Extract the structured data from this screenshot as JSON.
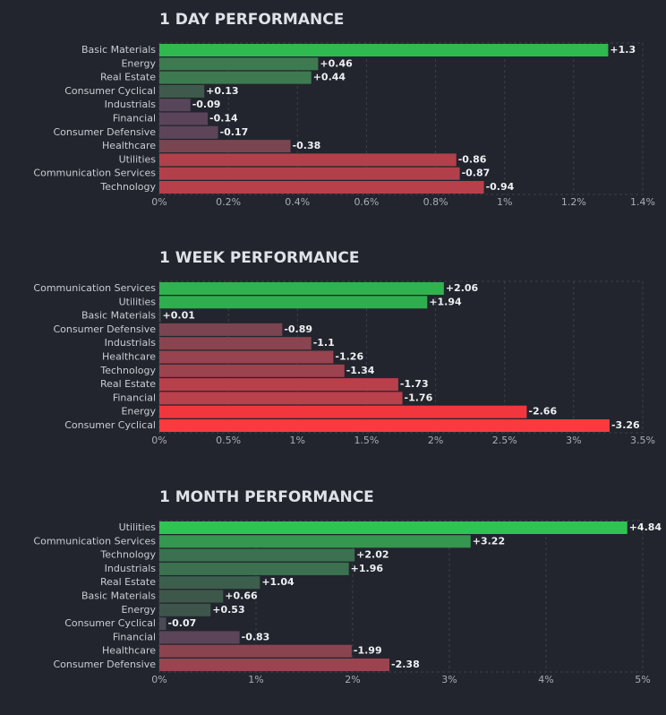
{
  "chart_data": [
    {
      "type": "bar",
      "orientation": "horizontal",
      "title": "1 DAY PERFORMANCE",
      "categories": [
        "Basic Materials",
        "Energy",
        "Real Estate",
        "Consumer Cyclical",
        "Industrials",
        "Financial",
        "Consumer Defensive",
        "Healthcare",
        "Utilities",
        "Communication Services",
        "Technology"
      ],
      "values": [
        1.3,
        0.46,
        0.44,
        0.13,
        -0.09,
        -0.14,
        -0.17,
        -0.38,
        -0.86,
        -0.87,
        -0.94
      ],
      "value_labels": [
        "+1.3",
        "+0.46",
        "+0.44",
        "+0.13",
        "-0.09",
        "-0.14",
        "-0.17",
        "-0.38",
        "-0.86",
        "-0.87",
        "-0.94"
      ],
      "colors": [
        "#2fb94f",
        "#3d7a50",
        "#3d7a50",
        "#3f5a4c",
        "#574659",
        "#5a4459",
        "#5d4458",
        "#7a4451",
        "#b2404a",
        "#b2404a",
        "#b8404a"
      ],
      "xlim": [
        0,
        1.4
      ],
      "xticks": [
        {
          "value": 0,
          "label": "0%"
        },
        {
          "value": 0.2,
          "label": "0.2%"
        },
        {
          "value": 0.4,
          "label": "0.4%"
        },
        {
          "value": 0.6,
          "label": "0.6%"
        },
        {
          "value": 0.8,
          "label": "0.8%"
        },
        {
          "value": 1,
          "label": "1%"
        },
        {
          "value": 1.2,
          "label": "1.2%"
        },
        {
          "value": 1.4,
          "label": "1.4%"
        }
      ],
      "grid": true
    },
    {
      "type": "bar",
      "orientation": "horizontal",
      "title": "1 WEEK PERFORMANCE",
      "categories": [
        "Communication Services",
        "Utilities",
        "Basic Materials",
        "Consumer Defensive",
        "Industrials",
        "Healthcare",
        "Technology",
        "Real Estate",
        "Financial",
        "Energy",
        "Consumer Cyclical"
      ],
      "values": [
        2.06,
        1.94,
        0.01,
        -0.89,
        -1.1,
        -1.26,
        -1.34,
        -1.73,
        -1.76,
        -2.66,
        -3.26
      ],
      "value_labels": [
        "+2.06",
        "+1.94",
        "+0.01",
        "-0.89",
        "-1.1",
        "-1.26",
        "-1.34",
        "-1.73",
        "-1.76",
        "-2.66",
        "-3.26"
      ],
      "colors": [
        "#30b24f",
        "#30ad4e",
        "#3f4f4a",
        "#7a4451",
        "#8a4450",
        "#974450",
        "#9c434f",
        "#b8404b",
        "#ba404b",
        "#f2363e",
        "#fb3a3f"
      ],
      "xlim": [
        0,
        3.5
      ],
      "xticks": [
        {
          "value": 0,
          "label": "0%"
        },
        {
          "value": 0.5,
          "label": "0.5%"
        },
        {
          "value": 1,
          "label": "1%"
        },
        {
          "value": 1.5,
          "label": "1.5%"
        },
        {
          "value": 2,
          "label": "2%"
        },
        {
          "value": 2.5,
          "label": "2.5%"
        },
        {
          "value": 3,
          "label": "3%"
        },
        {
          "value": 3.5,
          "label": "3.5%"
        }
      ],
      "grid": true
    },
    {
      "type": "bar",
      "orientation": "horizontal",
      "title": "1 MONTH PERFORMANCE",
      "categories": [
        "Utilities",
        "Communication Services",
        "Technology",
        "Industrials",
        "Real Estate",
        "Basic Materials",
        "Energy",
        "Consumer Cyclical",
        "Financial",
        "Healthcare",
        "Consumer Defensive"
      ],
      "values": [
        4.84,
        3.22,
        2.02,
        1.96,
        1.04,
        0.66,
        0.53,
        -0.07,
        -0.83,
        -1.99,
        -2.38
      ],
      "value_labels": [
        "+4.84",
        "+3.22",
        "+2.02",
        "+1.96",
        "+1.04",
        "+0.66",
        "+0.53",
        "-0.07",
        "-0.83",
        "-1.99",
        "-2.38"
      ],
      "colors": [
        "#2fc452",
        "#35964f",
        "#3b7150",
        "#3b7150",
        "#3c5e4c",
        "#3e574b",
        "#3e554b",
        "#4a4a55",
        "#5c4559",
        "#8a4450",
        "#9c434f"
      ],
      "xlim": [
        0,
        5
      ],
      "xticks": [
        {
          "value": 0,
          "label": "0%"
        },
        {
          "value": 1,
          "label": "1%"
        },
        {
          "value": 2,
          "label": "2%"
        },
        {
          "value": 3,
          "label": "3%"
        },
        {
          "value": 4,
          "label": "4%"
        },
        {
          "value": 5,
          "label": "5%"
        }
      ],
      "grid": true
    }
  ]
}
